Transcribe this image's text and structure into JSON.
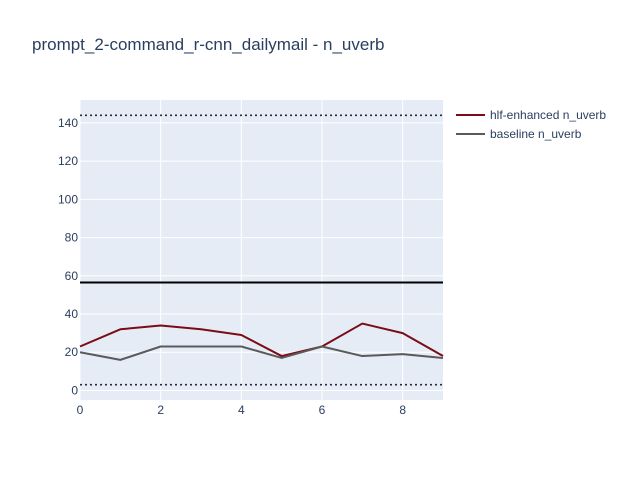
{
  "chart_data": {
    "type": "line",
    "title": "prompt_2-command_r-cnn_dailymail - n_uverb",
    "xlabel": "",
    "ylabel": "",
    "x": [
      0,
      1,
      2,
      3,
      4,
      5,
      6,
      7,
      8,
      9
    ],
    "xlim": [
      0,
      9
    ],
    "ylim": [
      -5,
      152
    ],
    "x_ticks": [
      0,
      2,
      4,
      6,
      8
    ],
    "y_ticks": [
      0,
      20,
      40,
      60,
      80,
      100,
      120,
      140
    ],
    "grid": true,
    "legend_position": "top-right",
    "series": [
      {
        "name": "hlf-enhanced n_uverb",
        "color": "#7b0c16",
        "values": [
          23,
          32,
          34,
          32,
          29,
          18,
          23,
          35,
          30,
          18
        ]
      },
      {
        "name": "baseline n_uverb",
        "color": "#5a5a5a",
        "values": [
          20,
          16,
          23,
          23,
          23,
          17,
          23,
          18,
          19,
          17
        ]
      }
    ],
    "reference_lines": [
      {
        "y": 56.5,
        "style": "solid",
        "color": "#000000"
      },
      {
        "y": 144,
        "style": "dotted",
        "color": "#2a2a3a"
      },
      {
        "y": 3,
        "style": "dotted",
        "color": "#2a2a3a"
      }
    ],
    "colors": {
      "plot_background": "#e5ecf6",
      "grid": "#ffffff",
      "text": "#2a3f5f"
    }
  }
}
